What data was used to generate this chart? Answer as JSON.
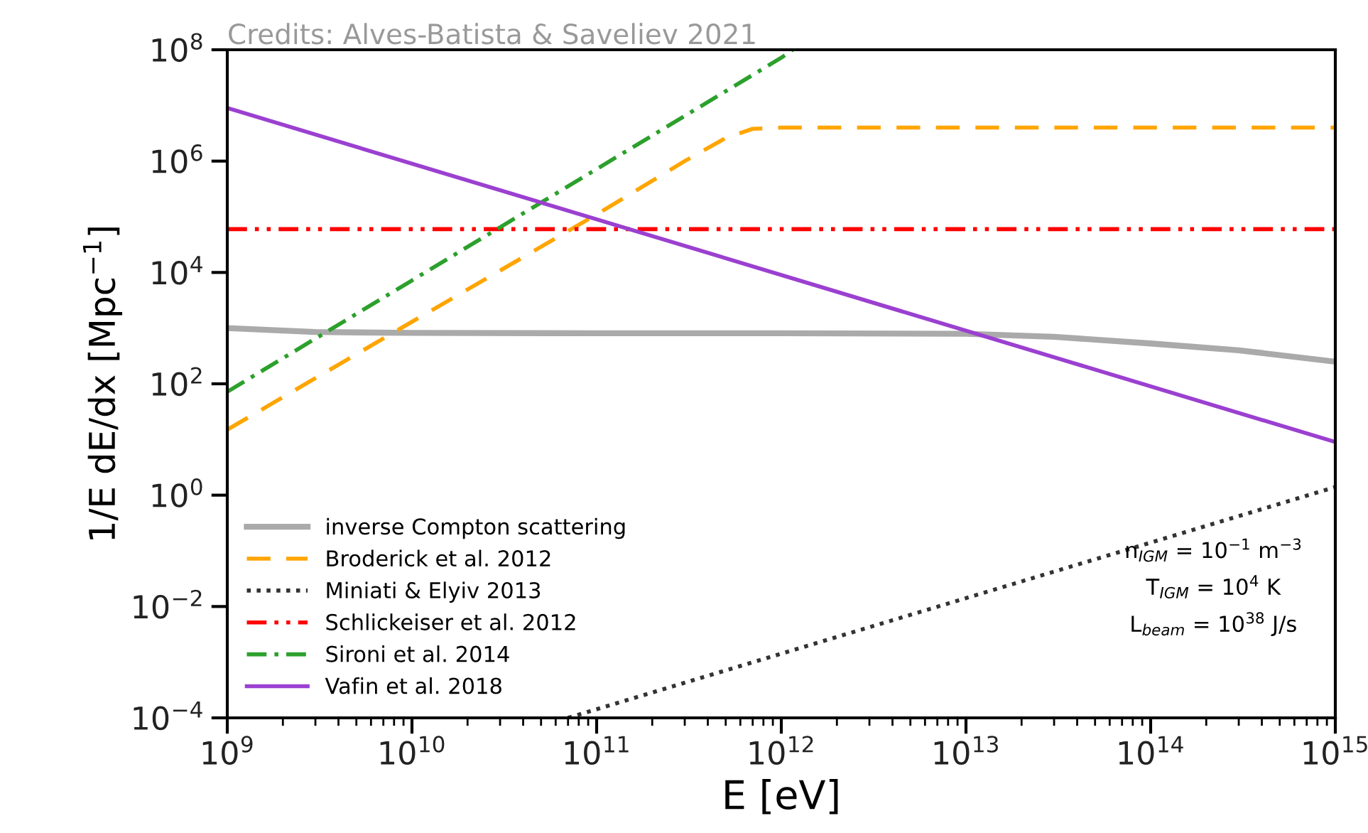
{
  "chart_data": {
    "type": "line",
    "title": "Credits: Alves-Batista & Saveliev 2021",
    "xlabel": "E [eV]",
    "ylabel": "1/E dE/dx [Mpc$^{−1}$]",
    "log": "xy",
    "xlim": [
      1000000000.0,
      1000000000000000.0
    ],
    "ylim": [
      0.0001,
      100000000.0
    ],
    "xticks": [
      {
        "value": 1000000000.0,
        "label": "10$^{9}$"
      },
      {
        "value": 10000000000.0,
        "label": "10$^{10}$"
      },
      {
        "value": 100000000000.0,
        "label": "10$^{11}$"
      },
      {
        "value": 1000000000000.0,
        "label": "10$^{12}$"
      },
      {
        "value": 10000000000000.0,
        "label": "10$^{13}$"
      },
      {
        "value": 100000000000000.0,
        "label": "10$^{14}$"
      },
      {
        "value": 1000000000000000.0,
        "label": "10$^{15}$"
      }
    ],
    "yticks": [
      {
        "value": 0.0001,
        "label": "10$^{−4}$"
      },
      {
        "value": 0.01,
        "label": "10$^{−2}$"
      },
      {
        "value": 1,
        "label": "10$^{0}$"
      },
      {
        "value": 100,
        "label": "10$^{2}$"
      },
      {
        "value": 10000.0,
        "label": "10$^{4}$"
      },
      {
        "value": 1000000.0,
        "label": "10$^{6}$"
      },
      {
        "value": 100000000.0,
        "label": "10$^{8}$"
      }
    ],
    "grid": false,
    "legend": "bottom left",
    "marker": "none",
    "series": [
      {
        "name": "inverse Compton scattering",
        "color": "#aaaaaa",
        "line_style": "solid",
        "x": [
          1000000000.0,
          3000000000.0,
          10000000000.0,
          100000000000.0,
          1000000000000.0,
          10000000000000.0,
          30000000000000.0,
          100000000000000.0,
          300000000000000.0,
          1000000000000000.0
        ],
        "values": [
          1000,
          850,
          820,
          810,
          810,
          790,
          700,
          530,
          400,
          250
        ]
      },
      {
        "name": "Broderick et al. 2012",
        "color": "#ffa500",
        "line_style": "dashed",
        "x": [
          1000000000.0,
          10000000000.0,
          100000000000.0,
          300000000000.0,
          500000000000.0,
          700000000000.0,
          1000000000000.0,
          1000000000000000.0
        ],
        "values": [
          15,
          1300,
          110000.0,
          1000000.0,
          2600000.0,
          3800000.0,
          4000000.0,
          4000000.0
        ]
      },
      {
        "name": "Miniati & Elyiv 2013",
        "color": "#333333",
        "line_style": "dotted",
        "x": [
          70000000000.0,
          1000000000000000.0
        ],
        "values": [
          0.0001,
          1.4
        ]
      },
      {
        "name": "Schlickeiser et al. 2012",
        "color": "#ff0000",
        "line_style": "dashdotdot",
        "x": [
          1000000000.0,
          1000000000000000.0
        ],
        "values": [
          60000.0,
          60000.0
        ]
      },
      {
        "name": "Sironi et al. 2014",
        "color": "#2ca02c",
        "line_style": "dashdot",
        "x": [
          1000000000.0,
          10000000000.0,
          100000000000.0,
          1000000000000.0,
          1150000000000.0
        ],
        "values": [
          72,
          7200,
          720000.0,
          72000000.0,
          100000000.0
        ]
      },
      {
        "name": "Vafin et al. 2018",
        "color": "#9b40d0",
        "line_style": "solid",
        "x": [
          1000000000.0,
          1000000000000000.0
        ],
        "values": [
          9000000.0,
          9
        ]
      }
    ],
    "annotations": [
      "n$_{IGM}$ = 10$^{−1}$ m$^{−3}$",
      "T$_{IGM}$ = 10$^{4}$ K",
      "L$_{beam}$ = 10$^{38}$ J/s"
    ]
  }
}
